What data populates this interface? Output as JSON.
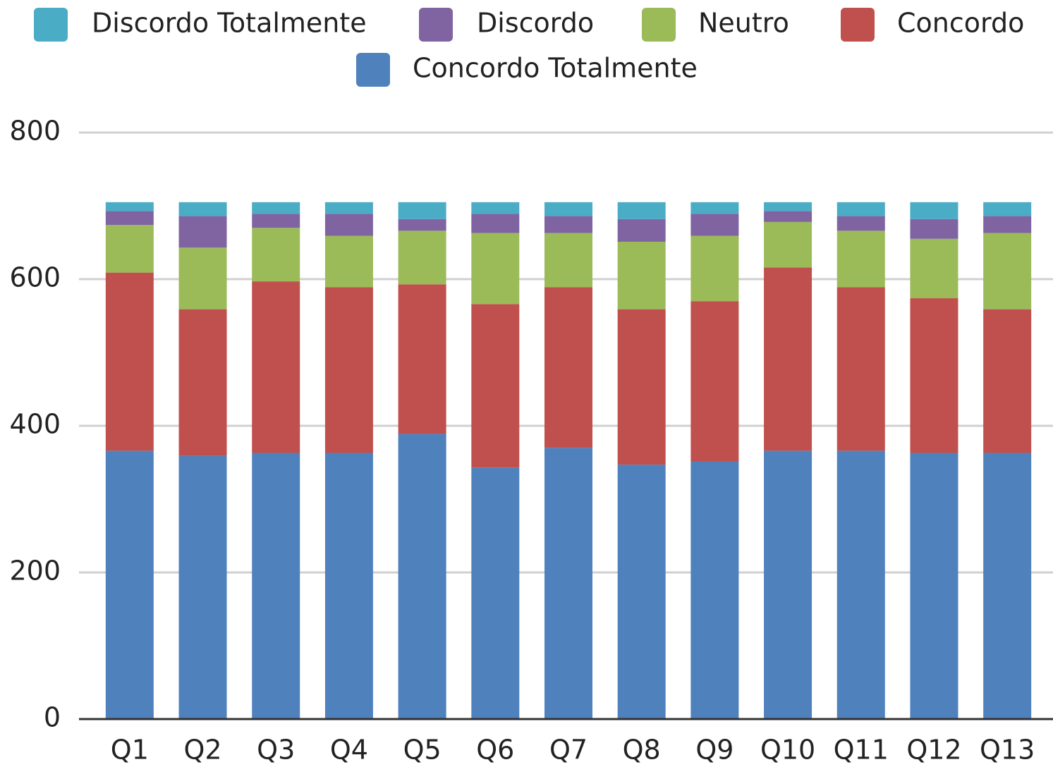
{
  "chart_data": {
    "type": "stacked_bar",
    "categories": [
      "Q1",
      "Q2",
      "Q3",
      "Q4",
      "Q5",
      "Q6",
      "Q7",
      "Q8",
      "Q9",
      "Q10",
      "Q11",
      "Q12",
      "Q13"
    ],
    "series": [
      {
        "name": "Discordo Totalmente",
        "color": "#4bacc6",
        "values": [
          12,
          19,
          16,
          16,
          23,
          16,
          19,
          23,
          16,
          12,
          19,
          23,
          19
        ]
      },
      {
        "name": "Discordo",
        "color": "#8064a2",
        "values": [
          19,
          43,
          19,
          30,
          16,
          26,
          23,
          31,
          30,
          15,
          20,
          27,
          23
        ]
      },
      {
        "name": "Neutro",
        "color": "#9bbb59",
        "values": [
          65,
          84,
          73,
          70,
          73,
          97,
          74,
          92,
          89,
          62,
          77,
          81,
          104
        ]
      },
      {
        "name": "Concordo",
        "color": "#c0504d",
        "values": [
          243,
          200,
          234,
          226,
          204,
          223,
          219,
          212,
          219,
          250,
          223,
          211,
          196
        ]
      },
      {
        "name": "Concordo Totalmente",
        "color": "#4f81bd",
        "values": [
          366,
          359,
          363,
          363,
          389,
          343,
          370,
          347,
          351,
          366,
          366,
          363,
          363
        ]
      }
    ],
    "ylim": [
      0,
      800
    ],
    "yticks": [
      0,
      200,
      400,
      600,
      800
    ],
    "grid": true,
    "legend": "top"
  }
}
